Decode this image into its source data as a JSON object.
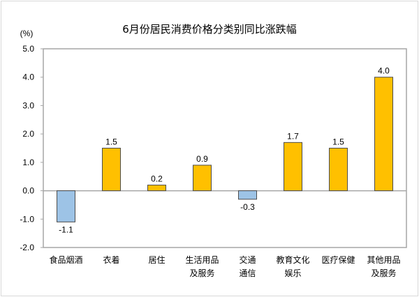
{
  "chart_data": {
    "type": "bar",
    "title": "6月份居民消费价格分类别同比涨跌幅",
    "ylabel": "(%)",
    "xlabel": "",
    "ylim": [
      -2.0,
      5.0
    ],
    "yticks": [
      "5.0",
      "4.0",
      "3.0",
      "2.0",
      "1.0",
      "0.0",
      "-1.0",
      "-2.0"
    ],
    "grid": false,
    "categories": [
      [
        "食品烟酒"
      ],
      [
        "衣着"
      ],
      [
        "居住"
      ],
      [
        "生活用品",
        "及服务"
      ],
      [
        "交通",
        "通信"
      ],
      [
        "教育文化",
        "娱乐"
      ],
      [
        "医疗保健"
      ],
      [
        "其他用品",
        "及服务"
      ]
    ],
    "values": [
      -1.1,
      1.5,
      0.2,
      0.9,
      -0.3,
      1.7,
      1.5,
      4.0
    ],
    "data_labels": [
      "-1.1",
      "1.5",
      "0.2",
      "0.9",
      "-0.3",
      "1.7",
      "1.5",
      "4.0"
    ],
    "colors": {
      "positive": "#FFC000",
      "negative": "#9DC3E6",
      "bar_border": "#4d4d4d",
      "axis": "#a6a6a6"
    }
  }
}
